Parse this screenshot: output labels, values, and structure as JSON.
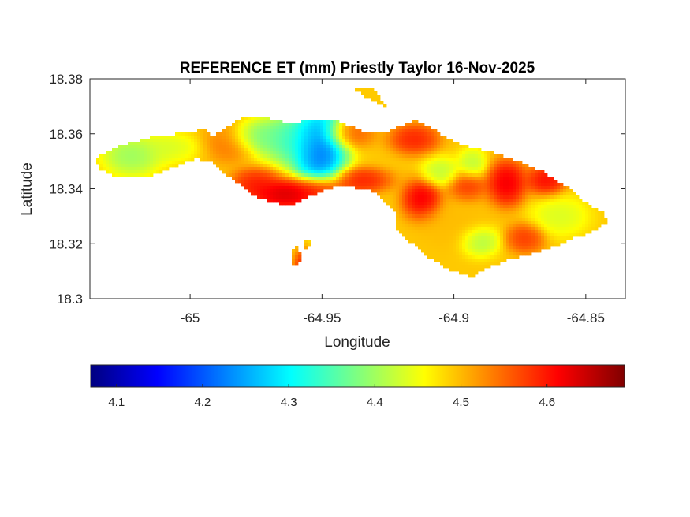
{
  "chart_data": {
    "type": "heatmap",
    "title": "REFERENCE ET (mm) Priestly Taylor 16-Nov-2025",
    "xlabel": "Longitude",
    "ylabel": "Latitude",
    "xlim": [
      -65.038,
      -64.835
    ],
    "ylim": [
      18.3,
      18.38
    ],
    "x_ticks": [
      -65,
      -64.95,
      -64.9,
      -64.85
    ],
    "x_tick_labels": [
      "-65",
      "-64.95",
      "-64.9",
      "-64.85"
    ],
    "y_ticks": [
      18.3,
      18.32,
      18.34,
      18.36,
      18.38
    ],
    "y_tick_labels": [
      "18.3",
      "18.32",
      "18.34",
      "18.36",
      "18.38"
    ],
    "grid": false,
    "colormap": "jet",
    "colorbar": {
      "location": "southoutside",
      "limits": [
        4.07,
        4.69
      ],
      "ticks": [
        4.1,
        4.2,
        4.3,
        4.4,
        4.5,
        4.6
      ],
      "tick_labels": [
        "4.1",
        "4.2",
        "4.3",
        "4.4",
        "4.5",
        "4.6"
      ]
    },
    "land_mask_outline": [
      [
        -65.036,
        18.351
      ],
      [
        -65.028,
        18.355
      ],
      [
        -65.015,
        18.359
      ],
      [
        -65.005,
        18.36
      ],
      [
        -65.0,
        18.36
      ],
      [
        -64.995,
        18.362
      ],
      [
        -64.992,
        18.359
      ],
      [
        -64.985,
        18.363
      ],
      [
        -64.98,
        18.366
      ],
      [
        -64.972,
        18.366
      ],
      [
        -64.962,
        18.364
      ],
      [
        -64.955,
        18.365
      ],
      [
        -64.945,
        18.365
      ],
      [
        -64.94,
        18.363
      ],
      [
        -64.932,
        18.36
      ],
      [
        -64.926,
        18.36
      ],
      [
        -64.92,
        18.363
      ],
      [
        -64.914,
        18.365
      ],
      [
        -64.908,
        18.362
      ],
      [
        -64.9,
        18.357
      ],
      [
        -64.893,
        18.355
      ],
      [
        -64.885,
        18.353
      ],
      [
        -64.875,
        18.35
      ],
      [
        -64.866,
        18.346
      ],
      [
        -64.856,
        18.34
      ],
      [
        -64.85,
        18.335
      ],
      [
        -64.843,
        18.331
      ],
      [
        -64.842,
        18.328
      ],
      [
        -64.848,
        18.324
      ],
      [
        -64.855,
        18.322
      ],
      [
        -64.862,
        18.319
      ],
      [
        -64.872,
        18.316
      ],
      [
        -64.88,
        18.314
      ],
      [
        -64.888,
        18.311
      ],
      [
        -64.893,
        18.308
      ],
      [
        -64.9,
        18.31
      ],
      [
        -64.908,
        18.314
      ],
      [
        -64.913,
        18.318
      ],
      [
        -64.918,
        18.322
      ],
      [
        -64.922,
        18.326
      ],
      [
        -64.922,
        18.331
      ],
      [
        -64.926,
        18.335
      ],
      [
        -64.932,
        18.34
      ],
      [
        -64.945,
        18.341
      ],
      [
        -64.955,
        18.337
      ],
      [
        -64.962,
        18.334
      ],
      [
        -64.968,
        18.335
      ],
      [
        -64.975,
        18.337
      ],
      [
        -64.98,
        18.341
      ],
      [
        -64.986,
        18.345
      ],
      [
        -64.992,
        18.35
      ],
      [
        -64.998,
        18.351
      ],
      [
        -65.006,
        18.348
      ],
      [
        -65.014,
        18.345
      ],
      [
        -65.02,
        18.344
      ],
      [
        -65.028,
        18.344
      ],
      [
        -65.034,
        18.347
      ]
    ],
    "islets": [
      [
        [
          -64.957,
          18.321
        ],
        [
          -64.954,
          18.322
        ],
        [
          -64.954,
          18.319
        ],
        [
          -64.957,
          18.318
        ]
      ],
      [
        [
          -64.961,
          18.318
        ],
        [
          -64.959,
          18.319
        ],
        [
          -64.958,
          18.314
        ],
        [
          -64.961,
          18.312
        ]
      ],
      [
        [
          -64.937,
          18.376
        ],
        [
          -64.93,
          18.376
        ],
        [
          -64.926,
          18.37
        ],
        [
          -64.934,
          18.374
        ]
      ]
    ],
    "anomalies": [
      {
        "lon": -64.951,
        "lat": 18.355,
        "sx": 0.0055,
        "sy": 0.008,
        "value": 4.12
      },
      {
        "lon": -64.96,
        "lat": 18.358,
        "sx": 0.008,
        "sy": 0.005,
        "value": 4.3
      },
      {
        "lon": -64.975,
        "lat": 18.359,
        "sx": 0.006,
        "sy": 0.003,
        "value": 4.36
      },
      {
        "lon": -65.022,
        "lat": 18.352,
        "sx": 0.006,
        "sy": 0.004,
        "value": 4.37
      },
      {
        "lon": -65.008,
        "lat": 18.355,
        "sx": 0.006,
        "sy": 0.003,
        "value": 4.42
      },
      {
        "lon": -64.963,
        "lat": 18.338,
        "sx": 0.008,
        "sy": 0.003,
        "value": 4.68
      },
      {
        "lon": -64.952,
        "lat": 18.34,
        "sx": 0.006,
        "sy": 0.0025,
        "value": 4.64
      },
      {
        "lon": -64.975,
        "lat": 18.342,
        "sx": 0.005,
        "sy": 0.003,
        "value": 4.62
      },
      {
        "lon": -64.935,
        "lat": 18.343,
        "sx": 0.006,
        "sy": 0.0025,
        "value": 4.62
      },
      {
        "lon": -64.912,
        "lat": 18.336,
        "sx": 0.004,
        "sy": 0.004,
        "value": 4.66
      },
      {
        "lon": -64.915,
        "lat": 18.358,
        "sx": 0.005,
        "sy": 0.003,
        "value": 4.62
      },
      {
        "lon": -64.88,
        "lat": 18.342,
        "sx": 0.004,
        "sy": 0.0045,
        "value": 4.66
      },
      {
        "lon": -64.865,
        "lat": 18.343,
        "sx": 0.004,
        "sy": 0.003,
        "value": 4.64
      },
      {
        "lon": -64.895,
        "lat": 18.341,
        "sx": 0.004,
        "sy": 0.003,
        "value": 4.6
      },
      {
        "lon": -64.905,
        "lat": 18.346,
        "sx": 0.004,
        "sy": 0.003,
        "value": 4.4
      },
      {
        "lon": -64.893,
        "lat": 18.349,
        "sx": 0.003,
        "sy": 0.003,
        "value": 4.4
      },
      {
        "lon": -64.89,
        "lat": 18.321,
        "sx": 0.004,
        "sy": 0.003,
        "value": 4.38
      },
      {
        "lon": -64.86,
        "lat": 18.33,
        "sx": 0.006,
        "sy": 0.004,
        "value": 4.42
      },
      {
        "lon": -64.873,
        "lat": 18.322,
        "sx": 0.004,
        "sy": 0.003,
        "value": 4.6
      },
      {
        "lon": -64.9,
        "lat": 18.327,
        "sx": 0.008,
        "sy": 0.005,
        "value": 4.5
      },
      {
        "lon": -64.94,
        "lat": 18.36,
        "sx": 0.005,
        "sy": 0.003,
        "value": 4.58
      },
      {
        "lon": -64.985,
        "lat": 18.357,
        "sx": 0.005,
        "sy": 0.004,
        "value": 4.56
      },
      {
        "lon": -64.957,
        "lat": 18.312,
        "sx": 0.002,
        "sy": 0.003,
        "value": 4.62
      },
      {
        "lon": -64.948,
        "lat": 18.322,
        "sx": 0.003,
        "sy": 0.002,
        "value": 4.42
      }
    ],
    "background_value": 4.49
  }
}
